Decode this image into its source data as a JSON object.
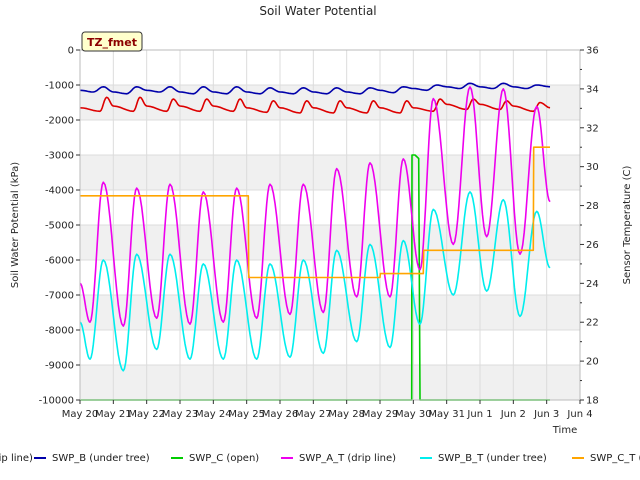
{
  "chart_data": {
    "type": "line",
    "title": "Soil Water Potential",
    "xlabel": "Time",
    "ylabel": "Soil Water Potential (kPa)",
    "y2label": "Sensor Temperature (C)",
    "badge": "TZ_fmet",
    "xlim": [
      0,
      15
    ],
    "ylim": [
      -10000,
      0
    ],
    "y2lim": [
      18,
      36
    ],
    "x_ticks": [
      {
        "v": 0,
        "label": "May 20"
      },
      {
        "v": 1,
        "label": "May 21"
      },
      {
        "v": 2,
        "label": "May 22"
      },
      {
        "v": 3,
        "label": "May 23"
      },
      {
        "v": 4,
        "label": "May 24"
      },
      {
        "v": 5,
        "label": "May 25"
      },
      {
        "v": 6,
        "label": "May 26"
      },
      {
        "v": 7,
        "label": "May 27"
      },
      {
        "v": 8,
        "label": "May 28"
      },
      {
        "v": 9,
        "label": "May 29"
      },
      {
        "v": 10,
        "label": "May 30"
      },
      {
        "v": 11,
        "label": "May 31"
      },
      {
        "v": 12,
        "label": "Jun 1"
      },
      {
        "v": 13,
        "label": "Jun 2"
      },
      {
        "v": 14,
        "label": "Jun 3"
      },
      {
        "v": 15,
        "label": "Jun 4"
      }
    ],
    "y_ticks": [
      {
        "v": 0,
        "label": "0"
      },
      {
        "v": -1000,
        "label": "-1000"
      },
      {
        "v": -2000,
        "label": "-2000"
      },
      {
        "v": -3000,
        "label": "-3000"
      },
      {
        "v": -4000,
        "label": "-4000"
      },
      {
        "v": -5000,
        "label": "-5000"
      },
      {
        "v": -6000,
        "label": "-6000"
      },
      {
        "v": -7000,
        "label": "-7000"
      },
      {
        "v": -8000,
        "label": "-8000"
      },
      {
        "v": -9000,
        "label": "-9000"
      },
      {
        "v": -10000,
        "label": "-10000"
      }
    ],
    "y2_ticks": [
      {
        "v": 18,
        "label": "18"
      },
      {
        "v": 20,
        "label": "20"
      },
      {
        "v": 22,
        "label": "22"
      },
      {
        "v": 24,
        "label": "24"
      },
      {
        "v": 26,
        "label": "26"
      },
      {
        "v": 28,
        "label": "28"
      },
      {
        "v": 30,
        "label": "30"
      },
      {
        "v": 32,
        "label": "32"
      },
      {
        "v": 34,
        "label": "34"
      },
      {
        "v": 36,
        "label": "36"
      }
    ],
    "grid": true,
    "legend_position": "bottom",
    "series": [
      {
        "name": "SWP_A (drip line)",
        "axis": "left",
        "color": "#dd0000",
        "x": [
          0,
          0.6,
          0.8,
          1,
          1.6,
          1.8,
          2,
          2.6,
          2.8,
          3,
          3.6,
          3.8,
          4,
          4.6,
          4.8,
          5,
          5.6,
          5.8,
          6,
          6.6,
          6.8,
          7,
          7.6,
          7.8,
          8,
          8.6,
          8.8,
          9,
          9.6,
          9.8,
          10,
          10.6,
          10.8,
          11,
          11.6,
          11.8,
          12,
          12.6,
          12.8,
          13,
          13.6,
          13.8,
          14.1
        ],
        "y": [
          -1650,
          -1750,
          -1350,
          -1600,
          -1750,
          -1350,
          -1600,
          -1750,
          -1400,
          -1600,
          -1750,
          -1400,
          -1600,
          -1750,
          -1400,
          -1650,
          -1780,
          -1450,
          -1650,
          -1800,
          -1450,
          -1650,
          -1800,
          -1450,
          -1650,
          -1800,
          -1450,
          -1650,
          -1800,
          -1450,
          -1650,
          -1750,
          -1400,
          -1550,
          -1700,
          -1400,
          -1550,
          -1700,
          -1450,
          -1600,
          -1750,
          -1500,
          -1650
        ]
      },
      {
        "name": "SWP_B (under tree)",
        "axis": "left",
        "color": "#0000aa",
        "x": [
          0,
          0.4,
          0.7,
          1,
          1.4,
          1.7,
          2,
          2.4,
          2.7,
          3,
          3.4,
          3.7,
          4,
          4.4,
          4.7,
          5,
          5.4,
          5.7,
          6,
          6.4,
          6.7,
          7,
          7.4,
          7.7,
          8,
          8.4,
          8.7,
          9,
          9.4,
          9.7,
          10,
          10.4,
          10.7,
          11,
          11.4,
          11.7,
          12,
          12.4,
          12.7,
          13,
          13.4,
          13.7,
          14.1
        ],
        "y": [
          -1150,
          -1200,
          -1050,
          -1200,
          -1250,
          -1050,
          -1150,
          -1200,
          -1050,
          -1200,
          -1250,
          -1050,
          -1200,
          -1250,
          -1050,
          -1200,
          -1250,
          -1080,
          -1200,
          -1250,
          -1080,
          -1200,
          -1250,
          -1080,
          -1200,
          -1250,
          -1080,
          -1150,
          -1220,
          -1050,
          -1100,
          -1150,
          -1000,
          -1050,
          -1100,
          -950,
          -1050,
          -1100,
          -950,
          -1050,
          -1100,
          -1000,
          -1050
        ]
      },
      {
        "name": "SWP_C (open)",
        "axis": "left",
        "color": "#00cc00",
        "x": [
          0,
          9.95,
          9.96,
          10.05,
          10.16,
          10.2,
          10.21,
          14.1
        ],
        "y": [
          -10000,
          -10000,
          -3000,
          -3000,
          -3100,
          -10000,
          -10000,
          -10000
        ]
      },
      {
        "name": "SWP_A_T (drip line)",
        "axis": "right",
        "color": "#ee00ee",
        "x": [
          0,
          0.3,
          0.7,
          1.3,
          1.7,
          2.3,
          2.7,
          3.3,
          3.7,
          4.3,
          4.7,
          5.3,
          5.7,
          6.3,
          6.7,
          7.3,
          7.7,
          8.3,
          8.7,
          9.3,
          9.7,
          10.2,
          10.6,
          11.2,
          11.7,
          12.2,
          12.7,
          13.2,
          13.7,
          14.1
        ],
        "y": [
          24,
          22,
          29.2,
          21.8,
          28.9,
          22.2,
          29.1,
          21.9,
          28.7,
          22,
          28.9,
          22.2,
          29.1,
          22.4,
          29.1,
          22.5,
          29.9,
          23.3,
          30.2,
          23.3,
          30.4,
          24.7,
          33.5,
          26,
          34.1,
          26.4,
          34,
          25.5,
          33.1,
          28.2
        ]
      },
      {
        "name": "SWP_B_T (under tree)",
        "axis": "right",
        "color": "#00eeee",
        "x": [
          0,
          0.3,
          0.7,
          1.3,
          1.7,
          2.3,
          2.7,
          3.3,
          3.7,
          4.3,
          4.7,
          5.3,
          5.7,
          6.3,
          6.7,
          7.3,
          7.7,
          8.3,
          8.7,
          9.3,
          9.7,
          10.2,
          10.6,
          11.2,
          11.7,
          12.2,
          12.7,
          13.2,
          13.7,
          14.1
        ],
        "y": [
          22,
          20.1,
          25.2,
          19.5,
          25.5,
          20.6,
          25.5,
          20.1,
          25,
          20.1,
          25.2,
          20.1,
          25,
          20.2,
          25.2,
          20.4,
          25.7,
          21,
          26,
          20.7,
          26.2,
          21.9,
          27.8,
          23.4,
          28.7,
          23.6,
          28.3,
          22.3,
          27.7,
          24.8
        ]
      },
      {
        "name": "SWP_C_T (open)",
        "axis": "right",
        "color": "#ffa500",
        "x": [
          0,
          5.05,
          5.06,
          9,
          9.01,
          9.9,
          10.3,
          10.31,
          13.6,
          13.61,
          14.1
        ],
        "y": [
          28.5,
          28.5,
          24.3,
          24.3,
          24.5,
          24.5,
          24.5,
          25.7,
          25.7,
          31,
          31
        ]
      }
    ]
  }
}
